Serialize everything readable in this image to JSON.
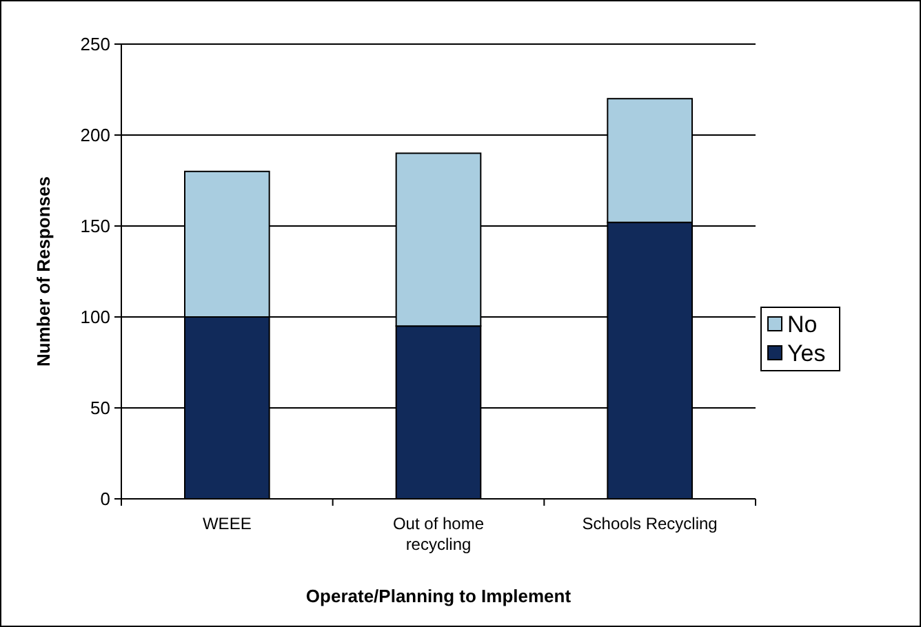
{
  "chart_data": {
    "type": "bar",
    "stacked": true,
    "xlabel": "Operate/Planning to Implement",
    "ylabel": "Number of Responses",
    "categories": [
      "WEEE",
      "Out of home recycling",
      "Schools Recycling"
    ],
    "series": [
      {
        "name": "Yes",
        "color": "#112a5a",
        "values": [
          100,
          95,
          152
        ]
      },
      {
        "name": "No",
        "color": "#a9cde0",
        "values": [
          80,
          95,
          68
        ]
      }
    ],
    "ylim": [
      0,
      250
    ],
    "yticks": [
      0,
      50,
      100,
      150,
      200,
      250
    ],
    "grid": "y",
    "legend": "right"
  }
}
